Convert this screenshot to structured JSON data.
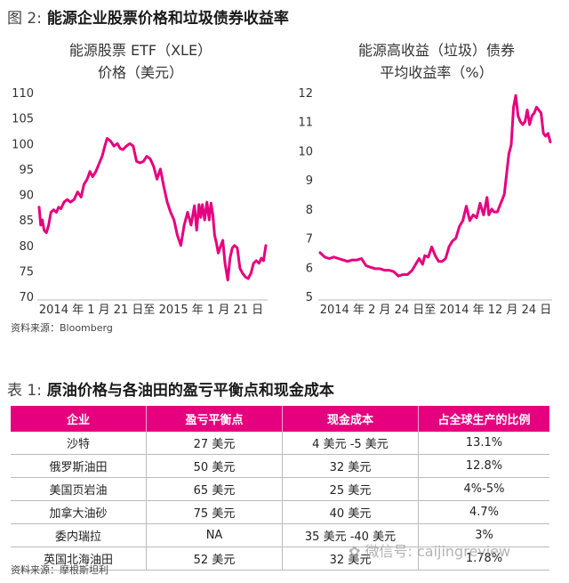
{
  "figure": {
    "label": "图 2:",
    "title": "能源企业股票价格和垃圾债券收益率",
    "source": "资料来源：Bloomberg"
  },
  "chart_data": [
    {
      "type": "line",
      "title": [
        "能源股票 ETF（XLE）",
        "价格（美元）"
      ],
      "xlabel": "2014 年 1 月 21 日至 2015 年 1 月 21 日",
      "ylabel": "",
      "ylim": [
        70,
        110
      ],
      "yticks": [
        "110",
        "105",
        "100",
        "95",
        "90",
        "85",
        "80",
        "75",
        "70"
      ],
      "grid": false,
      "color": "#e6007e",
      "series": [
        {
          "x": [
            0,
            0.7,
            1.4,
            2.2,
            3.2,
            4.2,
            5.2,
            6.4,
            7.6,
            8.6,
            9.6,
            11,
            12.4,
            13.8,
            15.4,
            17,
            18.5,
            19.8,
            21.2,
            22.4,
            23.6,
            25,
            26.4,
            27.8,
            29,
            30,
            31.5,
            33,
            34.5,
            35.8,
            37,
            38.5,
            40,
            41.5,
            43,
            44.5,
            46,
            47.5,
            49,
            50.5,
            52,
            53.5,
            55,
            56.5,
            58,
            59.5,
            61,
            62.5,
            64,
            65.5,
            67,
            68.5,
            69.5,
            70.5,
            71.3,
            72,
            73,
            74,
            75,
            75.8,
            76.6,
            77.4,
            78.2,
            79,
            80,
            81,
            82,
            83.2,
            84.2,
            85.2,
            86.2,
            87.4,
            88.6,
            89.8,
            91,
            92.2,
            93.4,
            94.6,
            95.8,
            97,
            98,
            99,
            100
          ],
          "y": [
            87.5,
            84,
            85,
            83,
            82.5,
            84,
            86.5,
            87,
            86.5,
            87.5,
            87.2,
            88.5,
            89,
            88.5,
            89,
            90.5,
            89.5,
            92,
            93,
            94.5,
            93.5,
            94.5,
            96,
            97.5,
            99.5,
            101,
            100.5,
            99.5,
            100,
            99,
            98.8,
            99.5,
            100,
            99.5,
            96.5,
            96.2,
            96.5,
            97.5,
            97,
            95.5,
            93,
            95,
            91.5,
            88.5,
            86.5,
            85,
            82,
            80,
            84,
            86.5,
            84,
            87.8,
            83,
            88,
            85.5,
            88,
            85,
            88.5,
            85,
            88.3,
            86.2,
            82,
            80.5,
            78.5,
            79.8,
            81,
            76.5,
            73.2,
            77.5,
            79.5,
            80,
            79.5,
            75.5,
            74.5,
            73.8,
            73.5,
            74.5,
            76.5,
            77,
            76.5,
            77.5,
            77,
            80
          ]
        }
      ]
    },
    {
      "type": "line",
      "title": [
        "能源高收益（垃圾）债券",
        "平均收益率（%）"
      ],
      "xlabel": "2014 年 2 月 24 日至 2014 年 12 月 24 日",
      "ylabel": "",
      "ylim": [
        5,
        12
      ],
      "yticks": [
        "12",
        "11",
        "10",
        "9",
        "8",
        "7",
        "6",
        "5"
      ],
      "grid": false,
      "color": "#e6007e",
      "series": [
        {
          "x": [
            0,
            2,
            4,
            6,
            8,
            10,
            12,
            14,
            16,
            18,
            20,
            22,
            24,
            26,
            28,
            30,
            32,
            34,
            36,
            38,
            40,
            41.5,
            43,
            44.5,
            45.5,
            47,
            48.5,
            50,
            51.5,
            53,
            54.5,
            56,
            57.5,
            59,
            60.5,
            62,
            63.5,
            65,
            66.5,
            68,
            69.5,
            71,
            72.5,
            73.3,
            74.5,
            75.5,
            77,
            78.5,
            80,
            81,
            82,
            83,
            84,
            85,
            86,
            87,
            88,
            89,
            90,
            91,
            92,
            93,
            94,
            95,
            96,
            97,
            98,
            99,
            100
          ],
          "y": [
            6.5,
            6.35,
            6.3,
            6.35,
            6.3,
            6.25,
            6.2,
            6.25,
            6.25,
            6.3,
            6.05,
            6,
            5.95,
            5.95,
            5.9,
            5.9,
            5.85,
            5.7,
            5.75,
            5.75,
            5.9,
            6.1,
            6.3,
            6.1,
            6.4,
            6.35,
            6.7,
            6.4,
            6.2,
            6.2,
            6.3,
            6.7,
            6.9,
            7,
            7.4,
            7.6,
            8.1,
            7.6,
            7.8,
            7.7,
            8.2,
            7.8,
            8.4,
            7.8,
            8,
            7.9,
            7.9,
            8.2,
            8.5,
            9.2,
            9.9,
            10.2,
            11.5,
            11.9,
            11.2,
            11,
            10.9,
            11,
            11.4,
            10.9,
            11.2,
            11.3,
            11.5,
            11.4,
            11.3,
            10.6,
            10.5,
            10.6,
            10.3
          ]
        }
      ]
    }
  ],
  "table": {
    "label": "表 1:",
    "title": "原油价格与各油田的盈亏平衡点和现金成本",
    "headers": [
      "企业",
      "盈亏平衡点",
      "现金成本",
      "占全球生产的比例"
    ],
    "rows": [
      [
        "沙特",
        "27 美元",
        "4 美元 -5 美元",
        "13.1%"
      ],
      [
        "俄罗斯油田",
        "50 美元",
        "32 美元",
        "12.8%"
      ],
      [
        "美国页岩油",
        "65 美元",
        "25 美元",
        "4%-5%"
      ],
      [
        "加拿大油砂",
        "75 美元",
        "40 美元",
        "4.7%"
      ],
      [
        "委内瑞拉",
        "NA",
        "35 美元 -40 美元",
        "3%"
      ],
      [
        "英国北海油田",
        "52 美元",
        "32 美元",
        "1.78%"
      ]
    ],
    "source": "资料来源：摩根斯坦利"
  },
  "watermark": "微信号: caijingreview",
  "accent_color": "#e6007e"
}
